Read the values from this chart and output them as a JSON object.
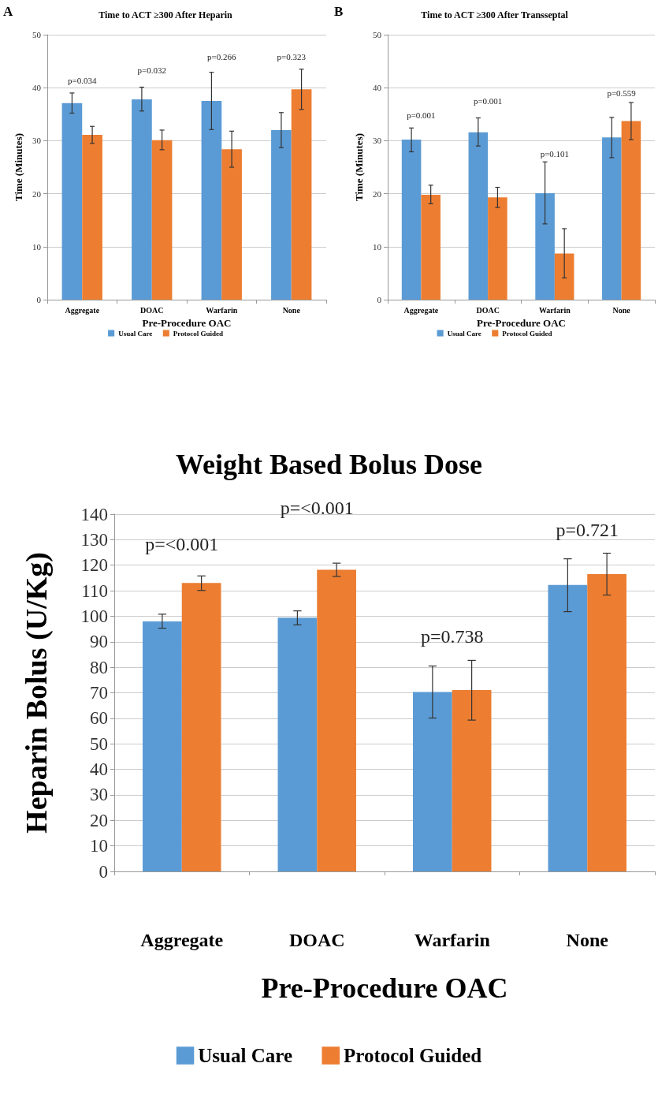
{
  "chart_data": [
    {
      "type": "bar",
      "title": "Time to ACT ≥300 After Heparin",
      "xlabel": "Pre-Procedure OAC",
      "ylabel": "Time (Minutes)",
      "categories": [
        "Aggregate",
        "DOAC",
        "Warfarin",
        "None"
      ],
      "series": [
        {
          "name": "Usual Care",
          "color": "#5b9bd5",
          "values": [
            37.1,
            37.8,
            37.5,
            32.0
          ],
          "errors": [
            [
              35.2,
              39.0
            ],
            [
              35.6,
              40.1
            ],
            [
              32.1,
              42.9
            ],
            [
              28.7,
              35.3
            ]
          ]
        },
        {
          "name": "Protocol Guided",
          "color": "#ed7d31",
          "values": [
            31.1,
            30.1,
            28.4,
            39.7
          ],
          "errors": [
            [
              29.5,
              32.7
            ],
            [
              28.3,
              32.0
            ],
            [
              25.0,
              31.8
            ],
            [
              35.9,
              43.5
            ]
          ]
        }
      ],
      "ylim": [
        0,
        50
      ],
      "yticks": [
        0,
        10,
        20,
        30,
        40,
        50
      ],
      "grid": "y",
      "legend": "bottom",
      "annotations": [
        "A",
        "p=0.034",
        "p=0.032",
        "p=0.266",
        "p=0.323"
      ]
    },
    {
      "type": "bar",
      "title": "Time to ACT ≥300 After Transseptal",
      "xlabel": "Pre-Procedure OAC",
      "ylabel": "Time (Minutes)",
      "categories": [
        "Aggregate",
        "DOAC",
        "Warfarin",
        "None"
      ],
      "series": [
        {
          "name": "Usual Care",
          "color": "#5b9bd5",
          "values": [
            30.2,
            31.6,
            20.1,
            30.6
          ],
          "errors": [
            [
              27.9,
              32.4
            ],
            [
              29.0,
              34.3
            ],
            [
              14.3,
              26.0
            ],
            [
              26.8,
              34.4
            ]
          ]
        },
        {
          "name": "Protocol Guided",
          "color": "#ed7d31",
          "values": [
            19.8,
            19.3,
            8.7,
            33.7
          ],
          "errors": [
            [
              18.1,
              21.6
            ],
            [
              17.4,
              21.2
            ],
            [
              4.1,
              13.4
            ],
            [
              30.2,
              37.2
            ]
          ]
        }
      ],
      "ylim": [
        0,
        50
      ],
      "yticks": [
        0,
        10,
        20,
        30,
        40,
        50
      ],
      "grid": "y",
      "legend": "bottom",
      "annotations": [
        "B",
        "p=0.001",
        "p=0.001",
        "p=0.101",
        "p=0.559"
      ]
    },
    {
      "type": "bar",
      "title": "Weight Based Bolus Dose",
      "xlabel": "Pre-Procedure OAC",
      "ylabel": "Heparin Bolus (U/Kg)",
      "categories": [
        "Aggregate",
        "DOAC",
        "Warfarin",
        "None"
      ],
      "series": [
        {
          "name": "Usual Care",
          "color": "#5b9bd5",
          "values": [
            98.0,
            99.4,
            70.3,
            112.3
          ],
          "errors": [
            [
              95.3,
              100.8
            ],
            [
              96.6,
              102.1
            ],
            [
              60.1,
              80.5
            ],
            [
              101.8,
              122.5
            ]
          ]
        },
        {
          "name": "Protocol Guided",
          "color": "#ed7d31",
          "values": [
            113.0,
            118.2,
            71.1,
            116.5
          ],
          "errors": [
            [
              110.1,
              115.8
            ],
            [
              115.6,
              120.8
            ],
            [
              59.3,
              82.7
            ],
            [
              108.3,
              124.7
            ]
          ]
        }
      ],
      "ylim": [
        0,
        140
      ],
      "yticks": [
        0,
        10,
        20,
        30,
        40,
        50,
        60,
        70,
        80,
        90,
        100,
        110,
        120,
        130,
        140
      ],
      "grid": "y",
      "legend": "bottom",
      "annotations": [
        "p=<0.001",
        "p=<0.001",
        "p=0.738",
        "p=0.721"
      ]
    }
  ]
}
